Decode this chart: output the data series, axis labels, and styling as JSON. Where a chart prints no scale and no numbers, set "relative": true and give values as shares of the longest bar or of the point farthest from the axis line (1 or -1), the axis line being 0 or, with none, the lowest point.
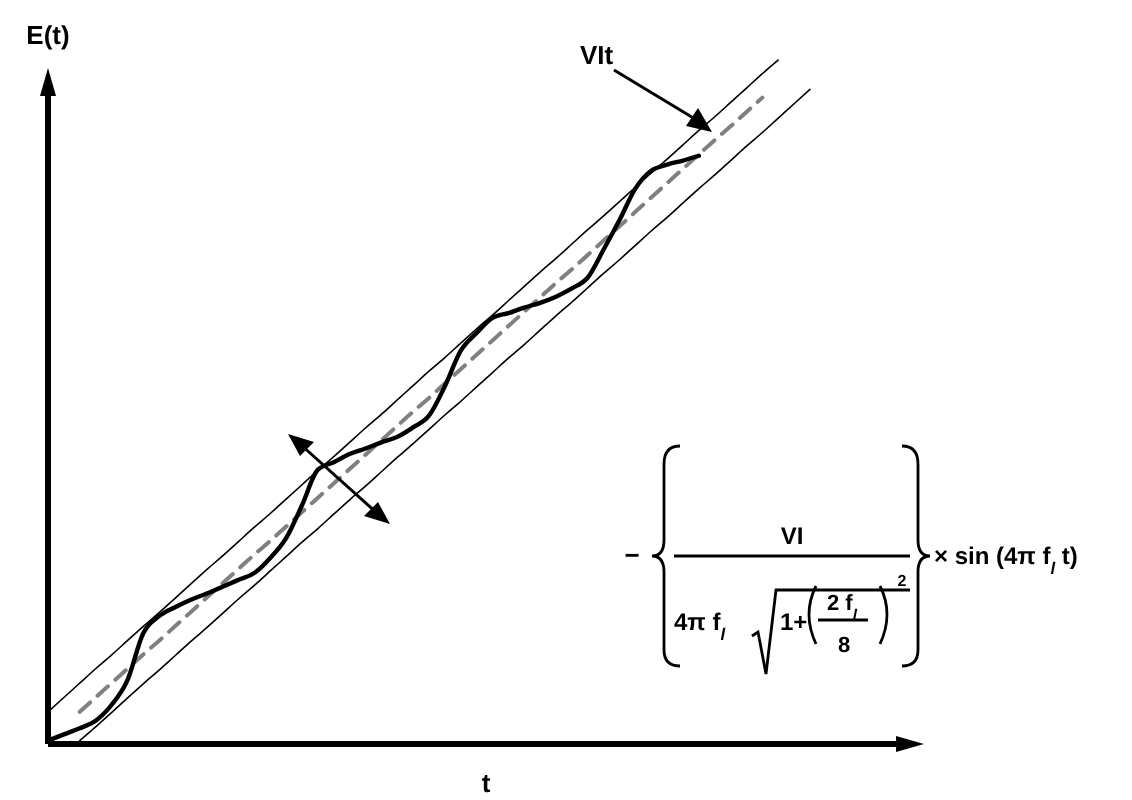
{
  "chart_data": {
    "type": "line",
    "relative": true,
    "xlabel": "t",
    "ylabel": "E(t)",
    "categories": [
      null,
      null,
      null,
      null,
      null,
      null,
      null,
      null,
      null,
      null,
      null,
      null,
      null,
      null,
      null,
      null,
      null,
      null,
      null,
      null,
      null,
      null,
      null,
      null,
      null,
      null,
      null,
      null,
      null,
      null,
      null,
      null,
      null,
      null,
      null,
      null,
      null,
      null,
      null,
      null,
      null,
      null,
      null,
      null,
      null,
      null,
      null,
      null,
      null
    ],
    "series": [
      {
        "color": "#000000",
        "line_style": "solid",
        "values": [
          0.005,
          0.014,
          0.023,
          0.034,
          0.057,
          0.093,
          0.162,
          0.187,
          0.2,
          0.211,
          0.22,
          0.23,
          0.24,
          0.25,
          0.272,
          0.301,
          0.349,
          0.401,
          0.412,
          0.424,
          0.432,
          0.441,
          0.449,
          0.463,
          0.48,
          0.523,
          0.575,
          0.601,
          0.623,
          0.63,
          0.638,
          0.645,
          0.654,
          0.666,
          0.682,
          0.723,
          0.766,
          0.812,
          0.838,
          0.847,
          0.853,
          0.86,
          null,
          null,
          null,
          null,
          null,
          null,
          null
        ]
      },
      {
        "color": "#808080",
        "line_style": "dashed",
        "values": [
          null,
          null,
          0.047,
          0.068,
          0.089,
          0.11,
          0.131,
          0.151,
          0.172,
          0.193,
          0.214,
          0.235,
          0.256,
          0.277,
          0.297,
          0.318,
          0.339,
          0.36,
          0.381,
          0.402,
          0.423,
          0.444,
          0.465,
          0.486,
          0.506,
          0.527,
          0.548,
          0.569,
          0.59,
          0.611,
          0.632,
          0.653,
          0.674,
          0.694,
          0.715,
          0.736,
          0.757,
          0.778,
          0.799,
          0.82,
          0.841,
          0.862,
          0.883,
          0.903,
          0.924,
          0.945,
          null,
          null,
          null
        ]
      },
      {
        "color": "#000000",
        "line_style": "solid",
        "values": [
          0.047,
          0.068,
          0.089,
          0.11,
          0.13,
          0.151,
          0.172,
          0.192,
          0.213,
          0.234,
          0.255,
          0.275,
          0.296,
          0.317,
          0.337,
          0.358,
          0.379,
          0.4,
          0.42,
          0.441,
          0.462,
          0.482,
          0.503,
          0.524,
          0.545,
          0.565,
          0.586,
          0.607,
          0.627,
          0.648,
          0.669,
          0.69,
          0.71,
          0.731,
          0.752,
          0.772,
          0.793,
          0.814,
          0.835,
          0.855,
          0.876,
          0.897,
          0.917,
          0.938,
          0.959,
          0.98,
          1.0,
          null,
          null
        ]
      },
      {
        "color": "#000000",
        "line_style": "solid",
        "values": [
          null,
          null,
          0.005,
          0.025,
          0.046,
          0.067,
          0.088,
          0.108,
          0.129,
          0.15,
          0.17,
          0.191,
          0.212,
          0.232,
          0.253,
          0.274,
          0.295,
          0.315,
          0.336,
          0.357,
          0.377,
          0.398,
          0.419,
          0.439,
          0.46,
          0.481,
          0.501,
          0.522,
          0.543,
          0.564,
          0.584,
          0.605,
          0.626,
          0.646,
          0.667,
          0.688,
          0.708,
          0.729,
          0.75,
          0.77,
          0.791,
          0.812,
          0.832,
          0.853,
          0.874,
          0.894,
          0.915,
          0.936,
          0.957
        ]
      }
    ],
    "annotations": [
      "VIt",
      "−",
      "VI",
      "4π f$_{l}$",
      "1+",
      "2 f$_{l}$",
      "8",
      "2",
      "× sin (4π f$_{l}$ t)"
    ]
  }
}
